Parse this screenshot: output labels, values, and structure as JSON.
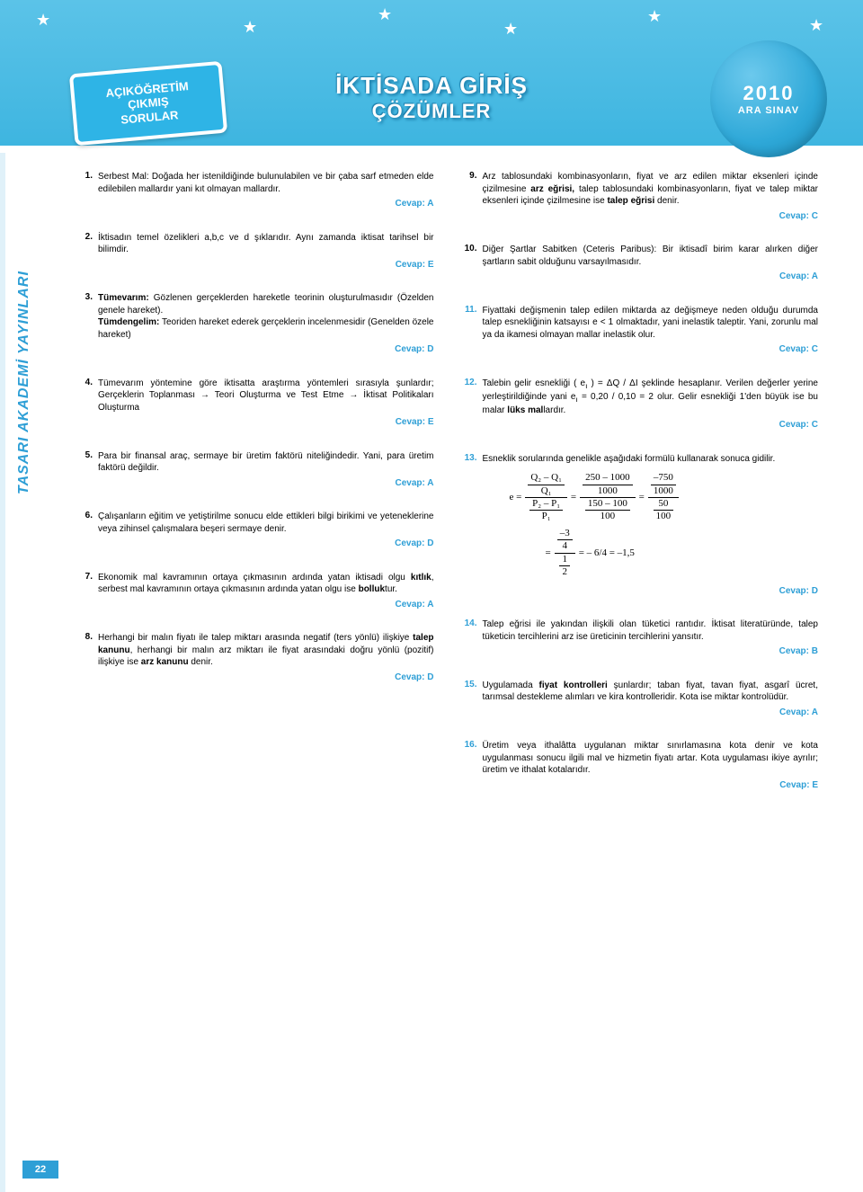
{
  "colors": {
    "accent": "#2e9fd6",
    "header_grad_top": "#5bc3e8",
    "header_grad_bot": "#3eb5e0",
    "text": "#000000",
    "white": "#ffffff"
  },
  "header": {
    "sign": {
      "line1": "AÇIKÖĞRETİM",
      "line2": "ÇIKMIŞ",
      "line3": "SORULAR"
    },
    "title1": "İKTİSADA GİRİŞ",
    "title2": "ÇÖZÜMLER",
    "year": "2010",
    "exam": "ARA SINAV"
  },
  "side_label": "TASARI AKADEMİ YAYINLARI",
  "page_number": "22",
  "left": [
    {
      "n": "1.",
      "blue": false,
      "text": "Serbest Mal: Doğada her istenildiğinde bulunulabilen ve bir çaba sarf etmeden elde edilebilen mallardır yani kıt olmayan mallardır.",
      "answer": "Cevap: A"
    },
    {
      "n": "2.",
      "blue": false,
      "text": "İktisadın temel özelikleri a,b,c ve d şıklarıdır. Aynı zamanda iktisat tarihsel bir bilimdir.",
      "answer": "Cevap: E"
    },
    {
      "n": "3.",
      "blue": false,
      "html": "<span class='bold'>Tümevarım:</span> Gözlenen gerçeklerden hareketle teorinin oluşturulmasıdır (Özelden genele hareket).<br><span class='bold'>Tümdengelim:</span> Teoriden hareket ederek gerçeklerin incelenmesidir (Genelden özele hareket)",
      "answer": "Cevap: D"
    },
    {
      "n": "4.",
      "blue": false,
      "text": "Tümevarım yöntemine göre iktisatta araştırma yöntemleri sırasıyla şunlardır;\nGerçeklerin Toplanması → Teori Oluşturma ve Test Etme → İktisat Politikaları Oluşturma",
      "answer": "Cevap: E"
    },
    {
      "n": "5.",
      "blue": false,
      "text": "Para bir finansal araç, sermaye bir üretim faktörü niteliğindedir. Yani, para üretim faktörü değildir.",
      "answer": "Cevap: A"
    },
    {
      "n": "6.",
      "blue": false,
      "text": "Çalışanların eğitim ve yetiştirilme sonucu elde ettikleri bilgi birikimi ve yeteneklerine veya zihinsel çalışmalara beşeri sermaye denir.",
      "answer": "Cevap: D"
    },
    {
      "n": "7.",
      "blue": false,
      "html": "Ekonomik mal kavramının ortaya çıkmasının ardında yatan iktisadi olgu <span class='bold'>kıtlık</span>, serbest mal kavramının ortaya çıkmasının ardında yatan olgu ise <span class='bold'>bolluk</span>tur.",
      "answer": "Cevap: A"
    },
    {
      "n": "8.",
      "blue": false,
      "html": "Herhangi bir malın fiyatı ile talep miktarı arasında negatif (ters yönlü) ilişkiye <span class='bold'>talep kanunu</span>, herhangi bir malın arz miktarı ile fiyat arasındaki doğru yönlü (pozitif) ilişkiye ise <span class='bold'>arz kanunu</span> denir.",
      "answer": "Cevap: D"
    }
  ],
  "right": [
    {
      "n": "9.",
      "blue": false,
      "html": "Arz tablosundaki kombinasyonların, fiyat ve arz edilen miktar eksenleri içinde çizilmesine <span class='bold'>arz eğrisi,</span> talep tablosundaki kombinasyonların, fiyat ve talep miktar eksenleri içinde çizilmesine ise <span class='bold'>talep eğrisi</span> denir.",
      "answer": "Cevap: C"
    },
    {
      "n": "10.",
      "blue": false,
      "text": "Diğer Şartlar Sabitken (Ceteris Paribus): Bir iktisadî birim karar alırken diğer şartların sabit olduğunu varsayılmasıdır.",
      "answer": "Cevap: A"
    },
    {
      "n": "11.",
      "blue": true,
      "text": "Fiyattaki değişmenin talep edilen miktarda az değişmeye neden olduğu durumda talep esnekliğinin katsayısı e < 1 olmaktadır, yani inelastik taleptir. Yani, zorunlu mal ya da ikamesi olmayan mallar inelastik olur.",
      "answer": "Cevap: C"
    },
    {
      "n": "12.",
      "blue": true,
      "html": "Talebin gelir esnekliği ( e<sub>ı</sub> ) = ΔQ / ΔI şeklinde hesaplanır. Verilen değerler yerine yerleştirildiğinde yani e<sub>ı</sub> = 0,20 / 0,10 = 2 olur. Gelir esnekliği 1'den büyük ise bu malar <span class='bold'>lüks mal</span>lardır.",
      "answer": "Cevap: C"
    },
    {
      "n": "13.",
      "blue": true,
      "text": "Esneklik sorularında genelikle aşağıdaki formülü kullanarak sonuca gidilir.",
      "formula": true,
      "answer": "Cevap: D"
    },
    {
      "n": "14.",
      "blue": true,
      "text": "Talep eğrisi ile yakından ilişkili olan tüketici rantıdır. İktisat literatüründe, talep tüketicin tercihlerini arz ise üreticinin tercihlerini yansıtır.",
      "answer": "Cevap: B"
    },
    {
      "n": "15.",
      "blue": true,
      "html": "Uygulamada <span class='bold'>fiyat kontrolleri</span> şunlardır; taban fiyat, tavan fiyat, asgarî ücret, tarımsal destekleme alımları ve kira kontrolleridir. Kota ise miktar kontrolüdür.",
      "answer": "Cevap: A"
    },
    {
      "n": "16.",
      "blue": true,
      "text": "Üretim veya ithalâtta uygulanan miktar sınırlamasına kota denir ve kota uygulanması sonucu ilgili mal ve hizmetin fiyatı artar. Kota uygulaması ikiye ayrılır; üretim ve ithalat kotalarıdır.",
      "answer": "Cevap: E"
    }
  ],
  "formula": {
    "lhs": "e =",
    "q_top": "Q₂ – Q₁",
    "q_bot": "Q₁",
    "p_top": "P₂ – P₁",
    "p_bot": "P₁",
    "n1_top": "250 – 1000",
    "n1_bot": "1000",
    "n2_top": "150 – 100",
    "n2_bot": "100",
    "n3_top": "–750",
    "n3_bot": "1000",
    "n4_top": "50",
    "n4_bot": "100",
    "s1_top": "–3",
    "s1_mid": "4",
    "s2_top": "1",
    "s2_bot": "2",
    "final": "= – 6/4 = –1,5"
  }
}
